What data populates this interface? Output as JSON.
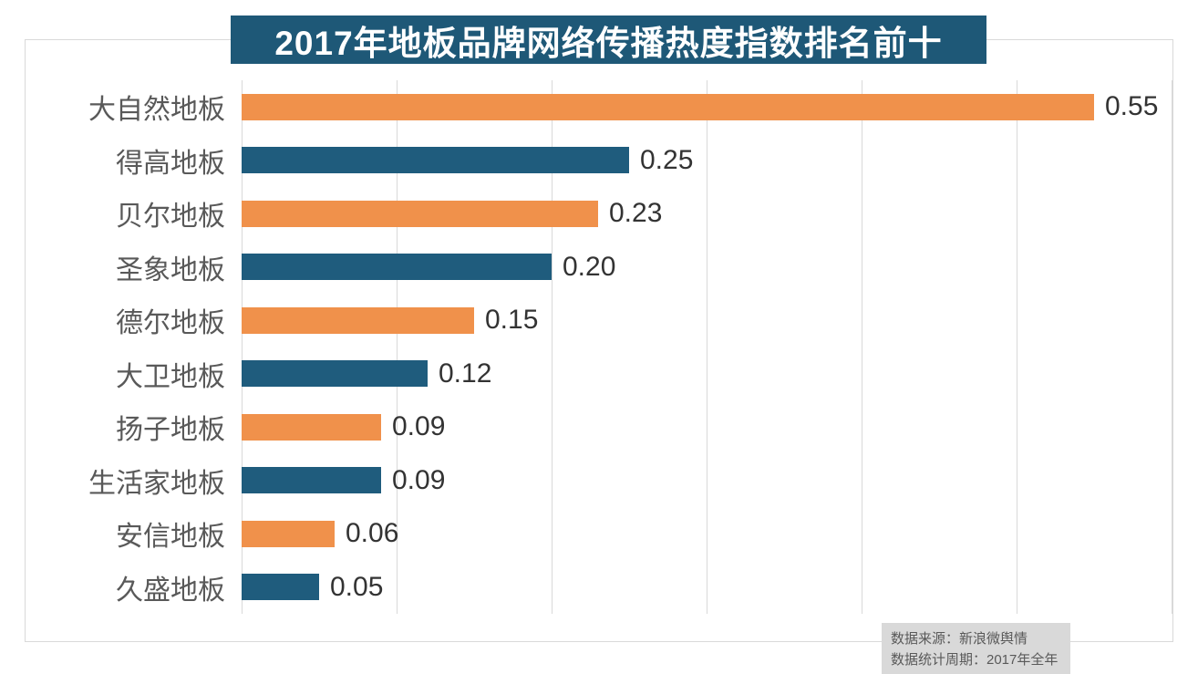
{
  "chart_data": {
    "type": "bar",
    "orientation": "horizontal",
    "title": "2017年地板品牌网络传播热度指数排名前十",
    "categories": [
      "大自然地板",
      "得高地板",
      "贝尔地板",
      "圣象地板",
      "德尔地板",
      "大卫地板",
      "扬子地板",
      "生活家地板",
      "安信地板",
      "久盛地板"
    ],
    "values": [
      0.55,
      0.25,
      0.23,
      0.2,
      0.15,
      0.12,
      0.09,
      0.09,
      0.06,
      0.05
    ],
    "value_labels": [
      "0.55",
      "0.25",
      "0.23",
      "0.20",
      "0.15",
      "0.12",
      "0.09",
      "0.09",
      "0.06",
      "0.05"
    ],
    "xlim": [
      0,
      0.6
    ],
    "gridline_interval": 0.1,
    "grid": "vertical-only",
    "legend": "none",
    "xlabel": "",
    "ylabel": ""
  },
  "footer": {
    "source": "数据来源：新浪微舆情",
    "period": "数据统计周期：2017年全年"
  },
  "colors": {
    "title_banner_bg": "#1E5877",
    "title_text": "#FFFFFF",
    "bar_orange": "#F0914B",
    "bar_blue": "#1F5C7D",
    "gridline": "#D9D9D9",
    "frame_border": "#D9D9D9",
    "category_label": "#595959",
    "value_label": "#333333",
    "footer_bg": "#D9D9D9",
    "footer_text": "#595959"
  }
}
